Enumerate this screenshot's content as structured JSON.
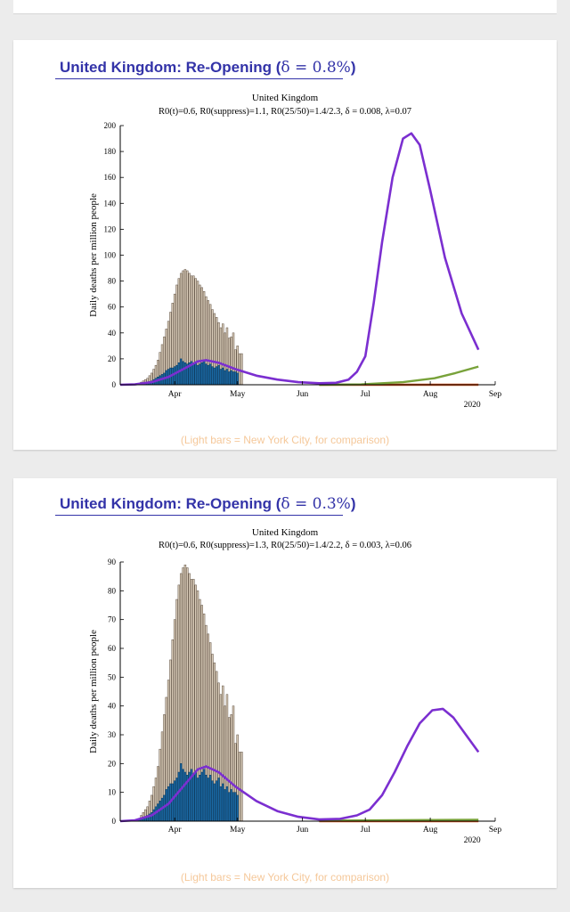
{
  "slides": [
    {
      "title": "United Kingdom: Re-Opening (",
      "title_math": "δ = 0.8%",
      "title_close": ")",
      "caption": "(Light bars = New York City, for comparison)"
    },
    {
      "title": "United Kingdom: Re-Opening (",
      "title_math": "δ = 0.3%",
      "title_close": ")",
      "caption": "(Light bars = New York City, for comparison)"
    }
  ],
  "colors": {
    "title": "#3333a8",
    "nyc_bar": "#d9ccb9",
    "nyc_edge": "#5d4e40",
    "uk_bar": "#1b6aa5",
    "uk_edge": "#0b3a60",
    "model": "#7b2fd0",
    "green": "#78a23a",
    "red": "#d9541e",
    "caption": "#f5c89a"
  },
  "chart_data": [
    {
      "type": "bar+line",
      "title": "United Kingdom",
      "subtitle": "R0(t)=0.6,  R0(suppress)=1.1,  R0(25/50)=1.4/2.3, δ = 0.008, λ=0.07",
      "ylabel": "Daily deaths per million people",
      "xlabel": "",
      "x_unit": "days since Mar 1, 2020",
      "xlim": [
        5,
        184
      ],
      "ylim": [
        0,
        200
      ],
      "yticks": [
        0,
        20,
        40,
        60,
        80,
        100,
        120,
        140,
        160,
        180,
        200
      ],
      "xticks": [
        {
          "label": "Apr",
          "x": 31
        },
        {
          "label": "May",
          "x": 61
        },
        {
          "label": "Jun",
          "x": 92
        },
        {
          "label": "Jul",
          "x": 122
        },
        {
          "label": "Aug",
          "x": 153
        },
        {
          "label": "Sep",
          "x": 184
        }
      ],
      "year_label": "2020",
      "nyc_bars": {
        "start": 14,
        "values": [
          1,
          2,
          3,
          4,
          5,
          7,
          9,
          12,
          15,
          19,
          25,
          31,
          37,
          43,
          49,
          56,
          63,
          70,
          77,
          82,
          86,
          88,
          89,
          88,
          86,
          84,
          84,
          82,
          80,
          77,
          75,
          72,
          68,
          65,
          62,
          58,
          55,
          52,
          48,
          44,
          47,
          40,
          44,
          36,
          37,
          40,
          27,
          30,
          24,
          24
        ]
      },
      "uk_bars": {
        "start": 12,
        "values": [
          0.3,
          0.5,
          0.5,
          1,
          1,
          1.5,
          2,
          2.5,
          3,
          4,
          5,
          6,
          7,
          8,
          9,
          11,
          12,
          13,
          13,
          14,
          15,
          17,
          20,
          18,
          17,
          16,
          17,
          18,
          16,
          17,
          15,
          16,
          17,
          18,
          16,
          15,
          16,
          14,
          13,
          14,
          15,
          12,
          13,
          11,
          12,
          10,
          11,
          10,
          10,
          9
        ]
      },
      "series": [
        {
          "name": "model",
          "color_key": "model",
          "points": [
            [
              5,
              0
            ],
            [
              12,
              0.3
            ],
            [
              20,
              2
            ],
            [
              28,
              6
            ],
            [
              35,
              12
            ],
            [
              42,
              18
            ],
            [
              46,
              19
            ],
            [
              52,
              17
            ],
            [
              60,
              12
            ],
            [
              70,
              7
            ],
            [
              80,
              4
            ],
            [
              90,
              2
            ],
            [
              100,
              1.2
            ],
            [
              108,
              1.5
            ],
            [
              114,
              4
            ],
            [
              118,
              10
            ],
            [
              122,
              22
            ],
            [
              126,
              63
            ],
            [
              130,
              110
            ],
            [
              135,
              160
            ],
            [
              140,
              190
            ],
            [
              144,
              194
            ],
            [
              148,
              185
            ],
            [
              153,
              150
            ],
            [
              160,
              98
            ],
            [
              168,
              55
            ],
            [
              176,
              27
            ]
          ]
        },
        {
          "name": "scenario-green",
          "color_key": "green",
          "points": [
            [
              100,
              0
            ],
            [
              120,
              0.3
            ],
            [
              140,
              2
            ],
            [
              155,
              5
            ],
            [
              165,
              9
            ],
            [
              176,
              14
            ]
          ]
        },
        {
          "name": "scenario-red",
          "color_key": "red",
          "points": [
            [
              100,
              0
            ],
            [
              176,
              0
            ]
          ]
        }
      ]
    },
    {
      "type": "bar+line",
      "title": "United Kingdom",
      "subtitle": "R0(t)=0.6,  R0(suppress)=1.3,  R0(25/50)=1.4/2.2, δ = 0.003, λ=0.06",
      "ylabel": "Daily deaths per million people",
      "xlabel": "",
      "x_unit": "days since Mar 1, 2020",
      "xlim": [
        5,
        184
      ],
      "ylim": [
        0,
        90
      ],
      "yticks": [
        0,
        10,
        20,
        30,
        40,
        50,
        60,
        70,
        80,
        90
      ],
      "xticks": [
        {
          "label": "Apr",
          "x": 31
        },
        {
          "label": "May",
          "x": 61
        },
        {
          "label": "Jun",
          "x": 92
        },
        {
          "label": "Jul",
          "x": 122
        },
        {
          "label": "Aug",
          "x": 153
        },
        {
          "label": "Sep",
          "x": 184
        }
      ],
      "year_label": "2020",
      "nyc_bars": {
        "start": 14,
        "values": [
          1,
          2,
          3,
          4,
          5,
          7,
          9,
          12,
          15,
          19,
          25,
          31,
          37,
          43,
          49,
          56,
          63,
          70,
          77,
          82,
          86,
          88,
          89,
          88,
          86,
          84,
          84,
          82,
          80,
          77,
          75,
          72,
          68,
          65,
          62,
          58,
          55,
          52,
          48,
          44,
          47,
          40,
          44,
          36,
          37,
          40,
          27,
          30,
          24,
          24
        ]
      },
      "uk_bars": {
        "start": 12,
        "values": [
          0.3,
          0.5,
          0.5,
          1,
          1,
          1.5,
          2,
          2.5,
          3,
          4,
          5,
          6,
          7,
          8,
          9,
          11,
          12,
          13,
          13,
          14,
          15,
          17,
          20,
          18,
          17,
          16,
          17,
          18,
          16,
          17,
          15,
          16,
          17,
          18,
          16,
          15,
          16,
          14,
          13,
          14,
          15,
          12,
          13,
          11,
          12,
          10,
          11,
          10,
          10,
          9
        ]
      },
      "series": [
        {
          "name": "model",
          "color_key": "model",
          "points": [
            [
              5,
              0
            ],
            [
              12,
              0.3
            ],
            [
              20,
              2
            ],
            [
              28,
              6
            ],
            [
              35,
              12
            ],
            [
              42,
              18
            ],
            [
              46,
              19
            ],
            [
              52,
              17
            ],
            [
              60,
              12
            ],
            [
              70,
              7
            ],
            [
              80,
              3.5
            ],
            [
              90,
              1.5
            ],
            [
              100,
              0.6
            ],
            [
              110,
              0.8
            ],
            [
              118,
              2
            ],
            [
              124,
              4
            ],
            [
              130,
              9
            ],
            [
              136,
              17
            ],
            [
              142,
              26
            ],
            [
              148,
              34
            ],
            [
              154,
              38.5
            ],
            [
              159,
              39
            ],
            [
              164,
              36
            ],
            [
              170,
              30
            ],
            [
              176,
              24
            ]
          ]
        },
        {
          "name": "scenario-green",
          "color_key": "green",
          "points": [
            [
              100,
              0.2
            ],
            [
              176,
              0.5
            ]
          ]
        },
        {
          "name": "scenario-red",
          "color_key": "red",
          "points": [
            [
              100,
              0
            ],
            [
              176,
              0
            ]
          ]
        }
      ]
    }
  ]
}
